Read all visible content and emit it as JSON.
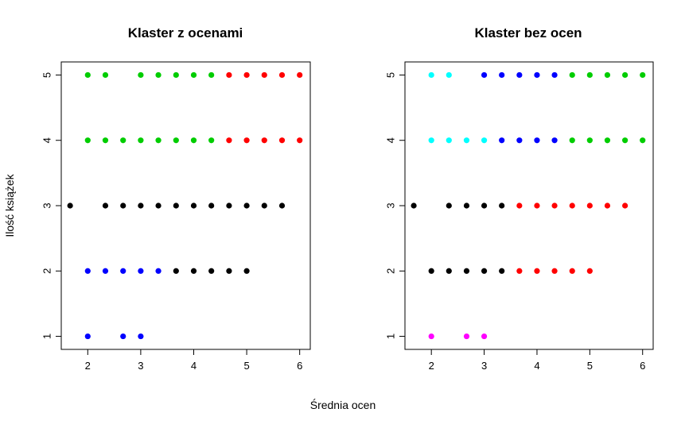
{
  "xlabel": "Średnia ocen",
  "ylabel": "Ilość książek",
  "colors": {
    "green": "#00cd00",
    "red": "#ff0000",
    "black": "#000000",
    "blue": "#0000ff",
    "cyan": "#00ffff",
    "magenta": "#ff00ff"
  },
  "chart_data": [
    {
      "type": "scatter",
      "title": "Klaster z ocenami",
      "xlim": [
        1.5,
        6.2
      ],
      "ylim": [
        0.8,
        5.2
      ],
      "xticks": [
        2,
        3,
        4,
        5,
        6
      ],
      "yticks": [
        1,
        2,
        3,
        4,
        5
      ],
      "grid": false,
      "series": [
        {
          "color": "green",
          "points": [
            [
              2,
              5
            ],
            [
              2.333,
              5
            ],
            [
              3,
              5
            ],
            [
              3.333,
              5
            ],
            [
              3.667,
              5
            ],
            [
              4,
              5
            ],
            [
              4.333,
              5
            ],
            [
              2,
              4
            ],
            [
              2.333,
              4
            ],
            [
              2.667,
              4
            ],
            [
              3,
              4
            ],
            [
              3.333,
              4
            ],
            [
              3.667,
              4
            ],
            [
              4,
              4
            ],
            [
              4.333,
              4
            ]
          ]
        },
        {
          "color": "red",
          "points": [
            [
              4.667,
              5
            ],
            [
              5,
              5
            ],
            [
              5.333,
              5
            ],
            [
              5.667,
              5
            ],
            [
              6,
              5
            ],
            [
              4.667,
              4
            ],
            [
              5,
              4
            ],
            [
              5.333,
              4
            ],
            [
              5.667,
              4
            ],
            [
              6,
              4
            ]
          ]
        },
        {
          "color": "black",
          "points": [
            [
              1.667,
              3
            ],
            [
              2.333,
              3
            ],
            [
              2.667,
              3
            ],
            [
              3,
              3
            ],
            [
              3.333,
              3
            ],
            [
              3.667,
              3
            ],
            [
              4,
              3
            ],
            [
              4.333,
              3
            ],
            [
              4.667,
              3
            ],
            [
              5,
              3
            ],
            [
              5.333,
              3
            ],
            [
              5.667,
              3
            ],
            [
              3.667,
              2
            ],
            [
              4,
              2
            ],
            [
              4.333,
              2
            ],
            [
              4.667,
              2
            ],
            [
              5,
              2
            ]
          ]
        },
        {
          "color": "blue",
          "points": [
            [
              2,
              2
            ],
            [
              2.333,
              2
            ],
            [
              2.667,
              2
            ],
            [
              3,
              2
            ],
            [
              3.333,
              2
            ],
            [
              2,
              1
            ],
            [
              2.667,
              1
            ],
            [
              3,
              1
            ]
          ]
        }
      ]
    },
    {
      "type": "scatter",
      "title": "Klaster bez ocen",
      "xlim": [
        1.5,
        6.2
      ],
      "ylim": [
        0.8,
        5.2
      ],
      "xticks": [
        2,
        3,
        4,
        5,
        6
      ],
      "yticks": [
        1,
        2,
        3,
        4,
        5
      ],
      "grid": false,
      "series": [
        {
          "color": "cyan",
          "points": [
            [
              2,
              5
            ],
            [
              2.333,
              5
            ],
            [
              2,
              4
            ],
            [
              2.333,
              4
            ],
            [
              2.667,
              4
            ],
            [
              3,
              4
            ]
          ]
        },
        {
          "color": "blue",
          "points": [
            [
              3,
              5
            ],
            [
              3.333,
              5
            ],
            [
              3.667,
              5
            ],
            [
              4,
              5
            ],
            [
              4.333,
              5
            ],
            [
              3.333,
              4
            ],
            [
              3.667,
              4
            ],
            [
              4,
              4
            ],
            [
              4.333,
              4
            ]
          ]
        },
        {
          "color": "green",
          "points": [
            [
              4.667,
              5
            ],
            [
              5,
              5
            ],
            [
              5.333,
              5
            ],
            [
              5.667,
              5
            ],
            [
              6,
              5
            ],
            [
              4.667,
              4
            ],
            [
              5,
              4
            ],
            [
              5.333,
              4
            ],
            [
              5.667,
              4
            ],
            [
              6,
              4
            ]
          ]
        },
        {
          "color": "black",
          "points": [
            [
              1.667,
              3
            ],
            [
              2.333,
              3
            ],
            [
              2.667,
              3
            ],
            [
              3,
              3
            ],
            [
              3.333,
              3
            ],
            [
              2,
              2
            ],
            [
              2.333,
              2
            ],
            [
              2.667,
              2
            ],
            [
              3,
              2
            ],
            [
              3.333,
              2
            ]
          ]
        },
        {
          "color": "red",
          "points": [
            [
              3.667,
              3
            ],
            [
              4,
              3
            ],
            [
              4.333,
              3
            ],
            [
              4.667,
              3
            ],
            [
              5,
              3
            ],
            [
              5.333,
              3
            ],
            [
              5.667,
              3
            ],
            [
              3.667,
              2
            ],
            [
              4,
              2
            ],
            [
              4.333,
              2
            ],
            [
              4.667,
              2
            ],
            [
              5,
              2
            ]
          ]
        },
        {
          "color": "magenta",
          "points": [
            [
              2,
              1
            ],
            [
              2.667,
              1
            ],
            [
              3,
              1
            ]
          ]
        }
      ]
    }
  ]
}
